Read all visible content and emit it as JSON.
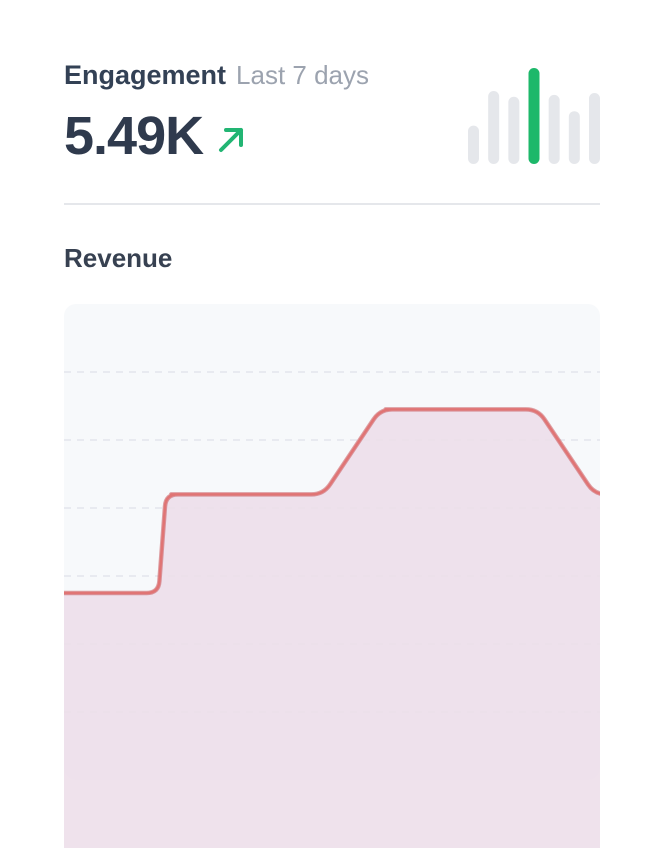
{
  "header": {
    "title": "Engagement",
    "period": "Last 7 days",
    "value": "5.49K",
    "trend": "up",
    "trend_icon": "arrow-up-right-icon",
    "trend_color": "#22b573"
  },
  "sparkline": {
    "values": [
      0.4,
      0.76,
      0.7,
      1.0,
      0.72,
      0.55,
      0.74
    ],
    "highlight_index": 3,
    "bar_color": "#e5e7eb",
    "highlight_color": "#1db86a"
  },
  "revenue": {
    "title": "Revenue"
  },
  "chart_data": {
    "type": "area",
    "title": "Revenue",
    "xlabel": "",
    "ylabel": "",
    "x": [
      0,
      1,
      2,
      3,
      4,
      5
    ],
    "values": [
      2.75,
      4.2,
      4.2,
      5.45,
      5.45,
      4.2
    ],
    "ylim": [
      0,
      7
    ],
    "grid": true,
    "line_color": "#e07474",
    "fill_color": "#ecdde9",
    "plot_bg": "#f7f9fb"
  }
}
